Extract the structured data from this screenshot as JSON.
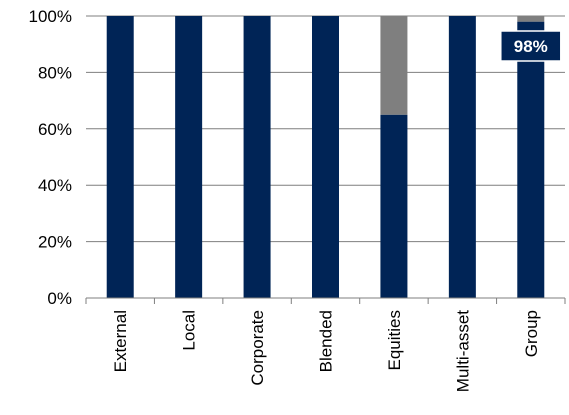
{
  "chart_data": {
    "type": "bar",
    "stacked": true,
    "percent_stacked": true,
    "categories": [
      "External",
      "Local",
      "Corporate",
      "Blended",
      "Equities",
      "Multi-asset",
      "Group"
    ],
    "series": [
      {
        "values": [
          100,
          100,
          100,
          100,
          65,
          100,
          98
        ],
        "color": "#002456"
      },
      {
        "values": [
          0,
          0,
          0,
          0,
          35,
          0,
          2
        ],
        "color": "#7f7f7f"
      }
    ],
    "y_ticks": [
      "0%",
      "20%",
      "40%",
      "60%",
      "80%",
      "100%"
    ],
    "ylim": [
      0,
      100
    ],
    "grid": true,
    "legend": "none",
    "annotations": [
      {
        "category": "Group",
        "text": "98%"
      }
    ],
    "colors": {
      "gridline": "#7f7f7f",
      "label_box": "#002456"
    }
  }
}
